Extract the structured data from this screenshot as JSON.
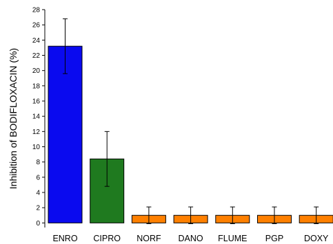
{
  "chart_data": {
    "type": "bar",
    "title": "",
    "xlabel": "",
    "ylabel": "Inhibition of BODIFLOXACIN (%)",
    "categories": [
      "ENRO",
      "CIPRO",
      "NORF",
      "DANO",
      "FLUME",
      "PGP",
      "DOXY"
    ],
    "values": [
      23.2,
      8.4,
      1.0,
      1.0,
      1.0,
      1.0,
      1.0
    ],
    "errors": [
      3.6,
      3.6,
      1.1,
      1.1,
      1.1,
      1.1,
      1.1
    ],
    "colors": [
      "#0a0aef",
      "#1f7a1f",
      "#ff8000",
      "#ff8000",
      "#ff8000",
      "#ff8000",
      "#ff8000"
    ],
    "ylim": [
      -0.6,
      28
    ],
    "yticks": [
      0,
      2,
      4,
      6,
      8,
      10,
      12,
      14,
      16,
      18,
      20,
      22,
      24,
      26,
      28
    ],
    "grid": false,
    "legend": "none"
  }
}
